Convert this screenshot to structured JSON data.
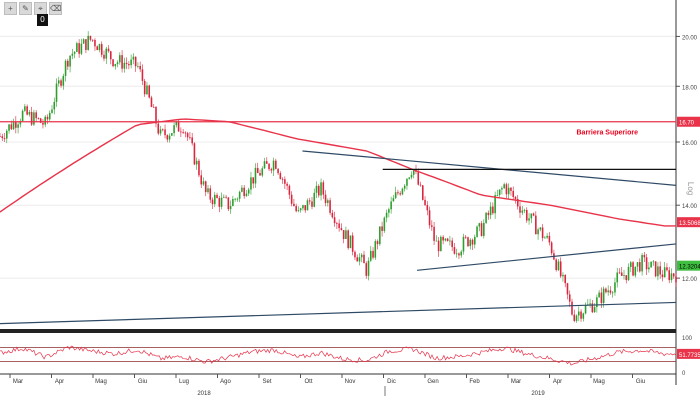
{
  "toolbar": {
    "icons": [
      "plus-icon",
      "pencil-icon",
      "pin-icon",
      "eraser-icon"
    ],
    "badge": "0"
  },
  "chart_data": [
    {
      "type": "candlestick",
      "title": "",
      "scale": "log",
      "scale_label": "Log",
      "ylim": [
        10.8,
        21.6
      ],
      "y_ticks": [
        "20.00",
        "18.00",
        "16.00",
        "14.00",
        "12.00"
      ],
      "x_tick_labels": [
        "Mar",
        "Apr",
        "Mag",
        "Giu",
        "Lug",
        "Ago",
        "Set",
        "Ott",
        "Nov",
        "Dic",
        "Gen",
        "Feb",
        "Mar",
        "Apr",
        "Mag",
        "Giu"
      ],
      "year_labels": [
        "2018",
        "2019"
      ],
      "price_path": [
        [
          0,
          16.2
        ],
        [
          1,
          17.0
        ],
        [
          2,
          16.6
        ],
        [
          3,
          19.2
        ],
        [
          4,
          19.9
        ],
        [
          5,
          19.0
        ],
        [
          6,
          18.8
        ],
        [
          7,
          16.2
        ],
        [
          8,
          16.6
        ],
        [
          9,
          14.3
        ],
        [
          10,
          14.0
        ],
        [
          11,
          14.8
        ],
        [
          12,
          15.4
        ],
        [
          13,
          13.7
        ],
        [
          14,
          14.5
        ],
        [
          15,
          13.2
        ],
        [
          16,
          12.2
        ],
        [
          17,
          13.9
        ],
        [
          18,
          15.2
        ],
        [
          19,
          12.9
        ],
        [
          20,
          12.8
        ],
        [
          21,
          13.3
        ],
        [
          22,
          14.6
        ],
        [
          23,
          13.7
        ],
        [
          24,
          12.9
        ],
        [
          25,
          11.1
        ],
        [
          26,
          11.4
        ],
        [
          27,
          12.0
        ],
        [
          28,
          12.4
        ],
        [
          29,
          12.1
        ]
      ],
      "moving_average": [
        [
          0,
          13.8
        ],
        [
          3,
          15.2
        ],
        [
          6,
          16.6
        ],
        [
          8,
          16.8
        ],
        [
          10,
          16.7
        ],
        [
          13,
          16.1
        ],
        [
          16,
          15.7
        ],
        [
          18,
          15.1
        ],
        [
          21,
          14.3
        ],
        [
          24,
          14.0
        ],
        [
          27,
          13.6
        ],
        [
          29,
          13.4
        ]
      ],
      "lines": [
        {
          "name": "resistance-trendline",
          "from": [
            13.2,
            15.7
          ],
          "to": [
            29.5,
            14.6
          ],
          "color": "#2f4a66"
        },
        {
          "name": "horizontal-resistance",
          "from": [
            16.7,
            15.1
          ],
          "to": [
            29.5,
            15.1
          ],
          "color": "#111111"
        },
        {
          "name": "support-trendline",
          "from": [
            18.2,
            12.2
          ],
          "to": [
            29.5,
            12.9
          ],
          "color": "#2f4a66"
        },
        {
          "name": "long-support-line",
          "from": [
            0,
            10.9
          ],
          "to": [
            29.5,
            11.4
          ],
          "color": "#2f4a66"
        },
        {
          "name": "barriera-line",
          "from": [
            0,
            16.7
          ],
          "to": [
            29.5,
            16.7
          ],
          "color": "#e8334a"
        }
      ],
      "annotations": [
        {
          "text": "Barriera Superiore",
          "x": 26.5,
          "y": 16.25,
          "color": "#e8001c"
        }
      ],
      "last_values": [
        {
          "text": "16.70",
          "value": 16.7,
          "bg": "#e8334a",
          "fg": "#ffffff"
        },
        {
          "text": "13.5068",
          "value": 13.5068,
          "bg": "#e8334a",
          "fg": "#ffffff"
        },
        {
          "text": "12.3204",
          "value": 12.3204,
          "bg": "#3fbf3f",
          "fg": "#000000"
        }
      ],
      "colors": {
        "up": "#2e9e2e",
        "down": "#d9263e",
        "ma": "#e8334a",
        "trend": "#2f4a66"
      }
    },
    {
      "type": "line",
      "title": "",
      "ylim": [
        0,
        100
      ],
      "y_ticks": [
        "100",
        "0"
      ],
      "levels": [
        70,
        30
      ],
      "last_value": {
        "text": "51.7735",
        "value": 51.7735,
        "bg": "#e8334a",
        "fg": "#ffffff"
      },
      "rsi_path": [
        [
          0,
          55
        ],
        [
          1,
          68
        ],
        [
          2,
          42
        ],
        [
          3,
          71
        ],
        [
          4,
          60
        ],
        [
          5,
          52
        ],
        [
          6,
          64
        ],
        [
          7,
          38
        ],
        [
          8,
          44
        ],
        [
          9,
          29
        ],
        [
          10,
          42
        ],
        [
          11,
          58
        ],
        [
          12,
          63
        ],
        [
          13,
          41
        ],
        [
          14,
          55
        ],
        [
          15,
          37
        ],
        [
          16,
          33
        ],
        [
          17,
          60
        ],
        [
          18,
          66
        ],
        [
          19,
          40
        ],
        [
          20,
          44
        ],
        [
          21,
          56
        ],
        [
          22,
          69
        ],
        [
          23,
          52
        ],
        [
          24,
          38
        ],
        [
          25,
          24
        ],
        [
          26,
          40
        ],
        [
          27,
          57
        ],
        [
          28,
          62
        ],
        [
          29,
          52
        ]
      ],
      "colors": {
        "line": "#e8334a",
        "levels": "#8a2a2a"
      }
    }
  ]
}
